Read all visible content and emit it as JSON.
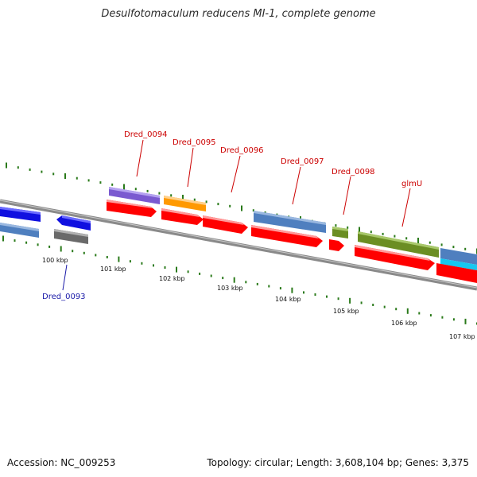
{
  "title": "Desulfotomaculum reducens MI-1, complete genome",
  "footer": {
    "accession": "Accession: NC_009253",
    "summary": "Topology: circular; Length: 3,608,104 bp; Genes: 3,375"
  },
  "scale_labels": [
    "100 kbp",
    "101 kbp",
    "102 kbp",
    "103 kbp",
    "104 kbp",
    "105 kbp",
    "106 kbp",
    "107 kbp"
  ],
  "gene_labels": {
    "dred_0093": "Dred_0093",
    "dred_0094": "Dred_0094",
    "dred_0095": "Dred_0095",
    "dred_0096": "Dred_0096",
    "dred_0097": "Dred_0097",
    "dred_0098": "Dred_0098",
    "glmu": "glmU"
  },
  "colors": {
    "backbone": "#8a8a8a",
    "tick": "#2a7a1a",
    "label_red": "#cc0000",
    "label_blue": "#1a1aa8",
    "cds_red": "#ff0000",
    "gene_blue": "#1010e0",
    "steel_blue": "#4f7fbf",
    "gray": "#6a6a6a",
    "purple": "#7a5ad0",
    "orange": "#ff9900",
    "olive": "#6b8e23",
    "cyan": "#16c8f0"
  }
}
